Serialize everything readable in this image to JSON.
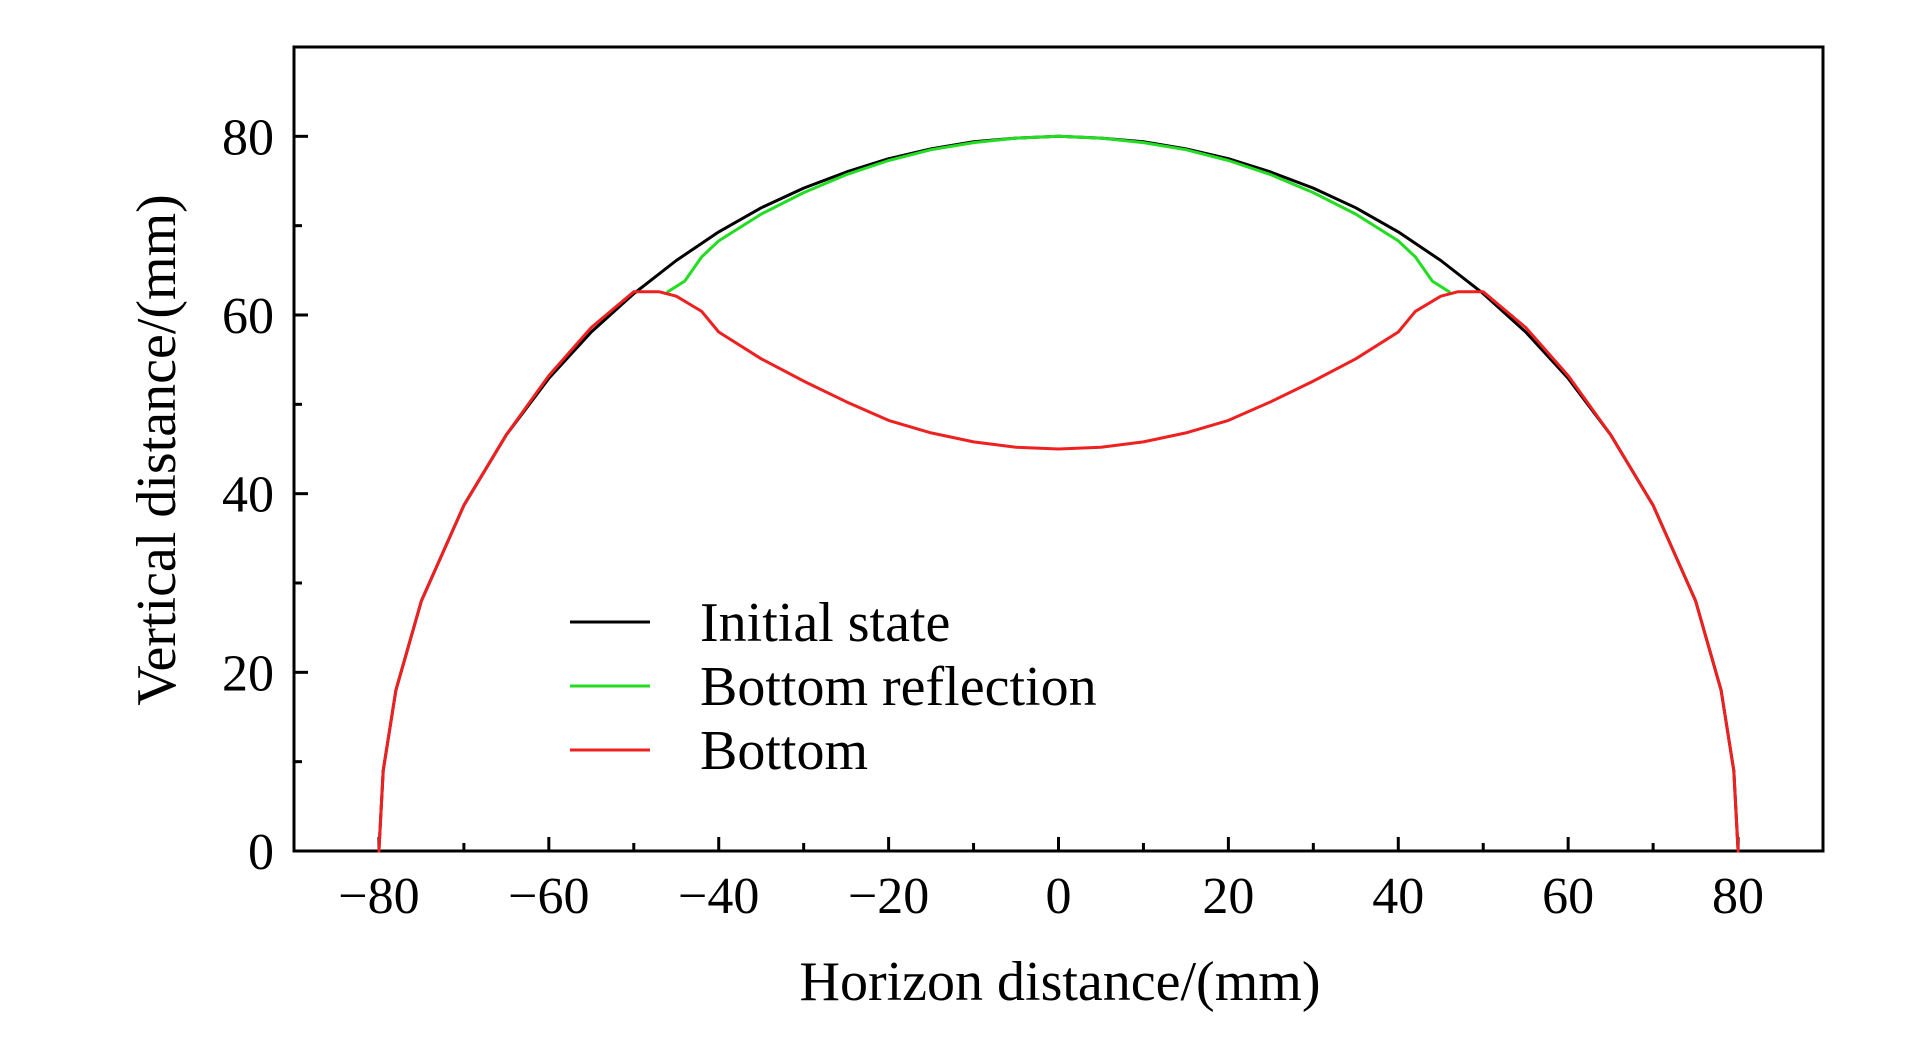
{
  "chart_data": {
    "type": "line",
    "xlabel": "Horizon distance/(mm)",
    "ylabel": "Vertical distance/(mm)",
    "xlim": [
      -90,
      90
    ],
    "ylim": [
      0,
      90
    ],
    "xticks": [
      -80,
      -60,
      -40,
      -20,
      0,
      20,
      40,
      60,
      80
    ],
    "xtick_labels": [
      "−80",
      "−60",
      "−40",
      "−20",
      "0",
      "20",
      "40",
      "60",
      "80"
    ],
    "yticks": [
      0,
      20,
      40,
      60,
      80
    ],
    "ytick_labels": [
      "0",
      "20",
      "40",
      "60",
      "80"
    ],
    "grid": false,
    "legend_position": "lower-center",
    "series": [
      {
        "name": "Initial state",
        "color": "#000000",
        "x": [
          -80,
          -79.5,
          -78,
          -75,
          -70,
          -65,
          -60,
          -55,
          -50,
          -45,
          -40,
          -35,
          -30,
          -25,
          -20,
          -15,
          -10,
          -5,
          0,
          5,
          10,
          15,
          20,
          25,
          30,
          35,
          40,
          45,
          50,
          55,
          60,
          65,
          70,
          75,
          78,
          79.5,
          80
        ],
        "y": [
          0,
          9,
          18,
          28,
          38.7,
          46.6,
          52.9,
          58.1,
          62.4,
          66.1,
          69.3,
          72.0,
          74.2,
          76.0,
          77.5,
          78.6,
          79.4,
          79.8,
          80,
          79.8,
          79.4,
          78.6,
          77.5,
          76.0,
          74.2,
          72.0,
          69.3,
          66.1,
          62.4,
          58.1,
          52.9,
          46.6,
          38.7,
          28,
          18,
          9,
          0
        ]
      },
      {
        "name": "Bottom reflection",
        "color": "#22dd22",
        "x": [
          -46,
          -44,
          -42,
          -40,
          -35,
          -30,
          -25,
          -20,
          -15,
          -10,
          -5,
          0,
          5,
          10,
          15,
          20,
          25,
          30,
          35,
          40,
          42,
          44,
          46
        ],
        "y": [
          62.6,
          63.8,
          66.5,
          68.3,
          71.3,
          73.7,
          75.7,
          77.3,
          78.5,
          79.3,
          79.8,
          80,
          79.8,
          79.3,
          78.5,
          77.3,
          75.7,
          73.7,
          71.3,
          68.3,
          66.5,
          63.8,
          62.6
        ]
      },
      {
        "name": "Bottom",
        "color": "#ee2020",
        "x": [
          -80,
          -79.5,
          -78,
          -75,
          -70,
          -65,
          -60,
          -55,
          -50,
          -47,
          -45,
          -42,
          -40,
          -35,
          -30,
          -25,
          -20,
          -15,
          -10,
          -5,
          0,
          5,
          10,
          15,
          20,
          25,
          30,
          35,
          40,
          42,
          45,
          47,
          50,
          55,
          60,
          65,
          70,
          75,
          78,
          79.5,
          80
        ],
        "y": [
          0,
          9,
          18,
          28,
          38.7,
          46.6,
          53.2,
          58.6,
          62.6,
          62.6,
          62.1,
          60.4,
          58.1,
          55.1,
          52.6,
          50.3,
          48.2,
          46.8,
          45.8,
          45.2,
          45,
          45.2,
          45.8,
          46.8,
          48.2,
          50.3,
          52.6,
          55.1,
          58.1,
          60.4,
          62.1,
          62.6,
          62.6,
          58.6,
          53.2,
          46.6,
          38.7,
          28,
          18,
          9,
          0
        ]
      }
    ]
  }
}
